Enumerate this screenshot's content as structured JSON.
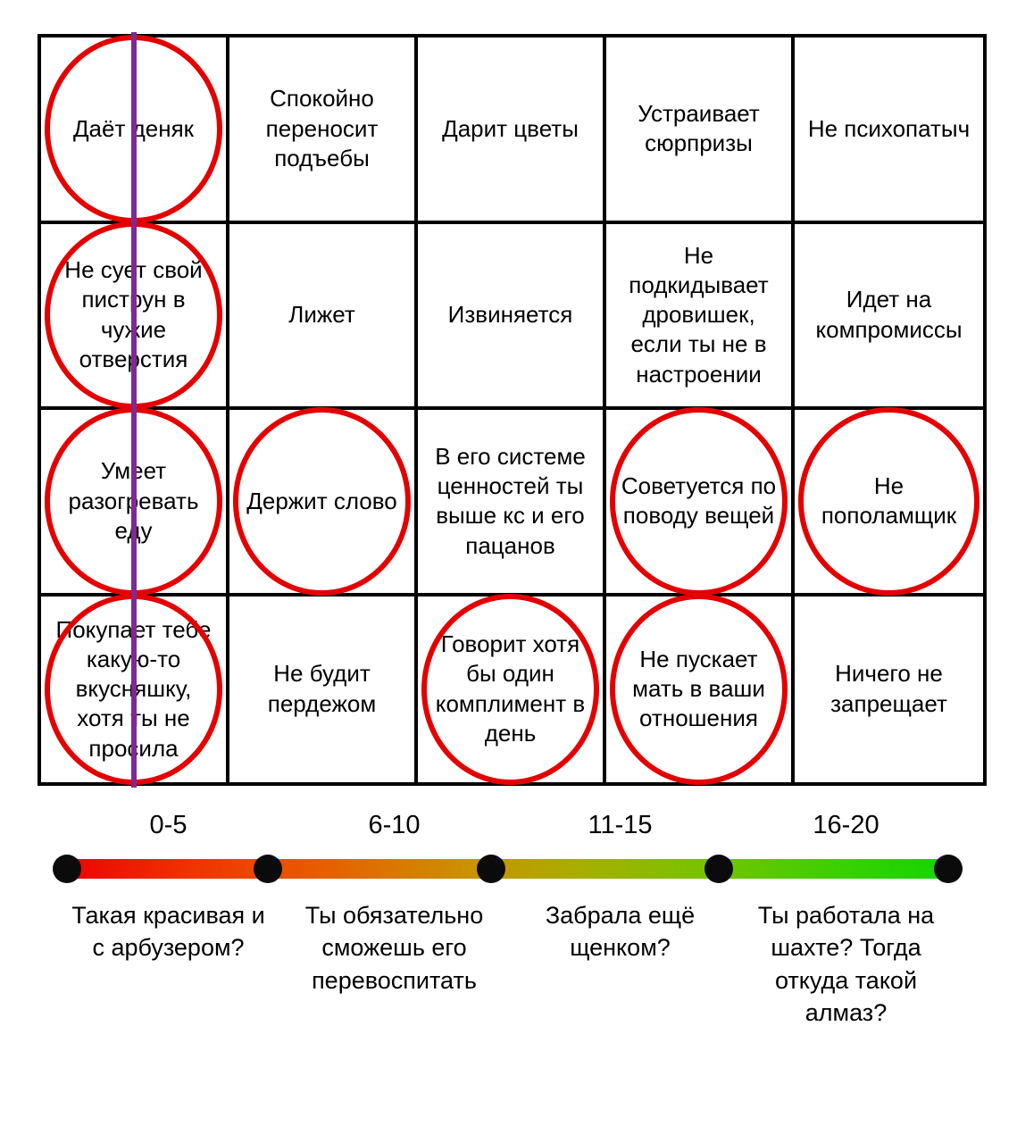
{
  "grid": {
    "rows": [
      [
        {
          "text": "Даёт деняк",
          "circled": true
        },
        {
          "text": "Спокойно переносит подъебы",
          "circled": false
        },
        {
          "text": "Дарит цветы",
          "circled": false
        },
        {
          "text": "Устраивает сюрпризы",
          "circled": false
        },
        {
          "text": "Не психопатыч",
          "circled": false
        }
      ],
      [
        {
          "text": "Не сует свой пиструн в чужие отверстия",
          "circled": true
        },
        {
          "text": "Лижет",
          "circled": false
        },
        {
          "text": "Извиняется",
          "circled": false
        },
        {
          "text": "Не подкидывает дровишек, если ты не в настроении",
          "circled": false
        },
        {
          "text": "Идет на компромиссы",
          "circled": false
        }
      ],
      [
        {
          "text": "Умеет разогревать еду",
          "circled": true
        },
        {
          "text": "Держит слово",
          "circled": true
        },
        {
          "text": "В его системе ценностей ты выше кс и его пацанов",
          "circled": false
        },
        {
          "text": "Советуется по поводу вещей",
          "circled": true
        },
        {
          "text": "Не пополамщик",
          "circled": true
        }
      ],
      [
        {
          "text": "Покупает тебе какую-то вкусняшку, хотя ты не просила",
          "circled": true
        },
        {
          "text": "Не будит пердежом",
          "circled": false
        },
        {
          "text": "Говорит хотя бы один комплимент в день",
          "circled": true
        },
        {
          "text": "Не пускает мать в ваши отношения",
          "circled": true
        },
        {
          "text": "Ничего не запрещает",
          "circled": false
        }
      ]
    ]
  },
  "scale": {
    "ranges": [
      {
        "label": "0-5",
        "caption": "Такая красивая и с арбузером?"
      },
      {
        "label": "6-10",
        "caption": "Ты обязательно сможешь его перевоспитать"
      },
      {
        "label": "11-15",
        "caption": "Забрала ещё щенком?"
      },
      {
        "label": "16-20",
        "caption": "Ты работала на шахте? Тогда откуда такой алмаз?"
      }
    ],
    "gradient_start": "#ee0000",
    "gradient_end": "#10d600",
    "dot_color": "#0b0b0b"
  },
  "annotations": {
    "circle_color": "#e50000",
    "line_color": "#7e2a8f"
  }
}
